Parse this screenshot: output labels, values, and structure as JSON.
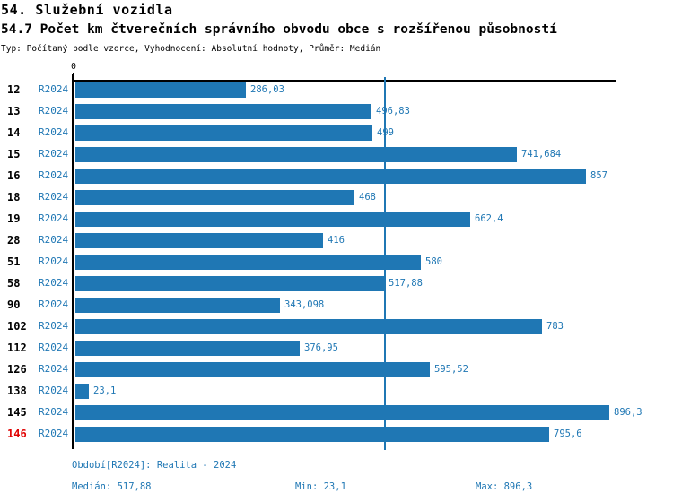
{
  "header": {
    "title": "54. Služební vozidla",
    "subtitle": "54.7 Počet km čtverečních správního obvodu obce s rozšířenou působností",
    "meta": "Typ: Počítaný podle vzorce, Vyhodnocení: Absolutní hodnoty, Průměr: Medián"
  },
  "chart_data": {
    "type": "bar",
    "orientation": "horizontal",
    "x_axis_origin_label": "0",
    "xlim": [
      0,
      905
    ],
    "grid": false,
    "series_name": "R2024",
    "categories": [
      "12",
      "13",
      "14",
      "15",
      "16",
      "18",
      "19",
      "28",
      "51",
      "58",
      "90",
      "102",
      "112",
      "126",
      "138",
      "145",
      "146"
    ],
    "values": [
      286.03,
      496.83,
      499,
      741.684,
      857,
      468,
      662.4,
      416,
      580,
      517.88,
      343.098,
      783,
      376.95,
      595.52,
      23.1,
      896.3,
      795.6
    ],
    "value_labels": [
      "286,03",
      "496,83",
      "499",
      "741,684",
      "857",
      "468",
      "662,4",
      "416",
      "580",
      "517,88",
      "343,098",
      "783",
      "376,95",
      "595,52",
      "23,1",
      "896,3",
      "795,6"
    ],
    "highlighted_category": "146",
    "median_line_value": 517.88,
    "stats": {
      "median": 517.88,
      "min": 23.1,
      "max": 896.3
    },
    "colors": {
      "bar": "#1f77b4",
      "value_label": "#1f77b4",
      "series_label": "#1f77b4",
      "category_label": "#000000",
      "highlight_label": "#e00000",
      "median_line": "#1f77b4",
      "footer_text": "#1f77b4"
    }
  },
  "footer": {
    "period": "Období[R2024]: Realita - 2024",
    "median": "Medián: 517,88",
    "min": "Min: 23,1",
    "max": "Max: 896,3"
  }
}
